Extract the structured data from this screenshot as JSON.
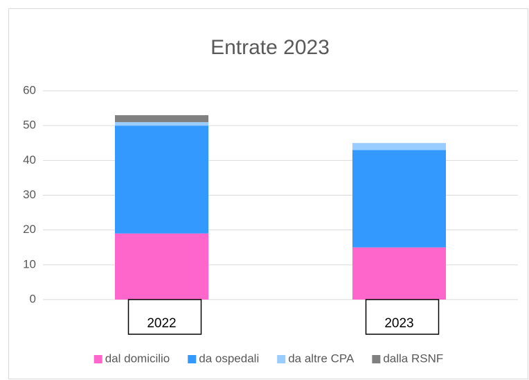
{
  "chart_data": {
    "type": "stacked_bar",
    "title": "Entrate 2023",
    "categories": [
      "2022",
      "2023"
    ],
    "series": [
      {
        "name": "dal domicilio",
        "color": "#ff66cc",
        "values": [
          19,
          15
        ]
      },
      {
        "name": "da ospedali",
        "color": "#3399ff",
        "values": [
          31,
          28
        ]
      },
      {
        "name": "da altre CPA",
        "color": "#99ccff",
        "values": [
          1,
          2
        ]
      },
      {
        "name": "dalla RSNF",
        "color": "#808080",
        "values": [
          2,
          0
        ]
      }
    ],
    "ylim": [
      0,
      60
    ],
    "yticks": [
      0,
      10,
      20,
      30,
      40,
      50,
      60
    ],
    "grid": true,
    "legend": "bottom"
  }
}
